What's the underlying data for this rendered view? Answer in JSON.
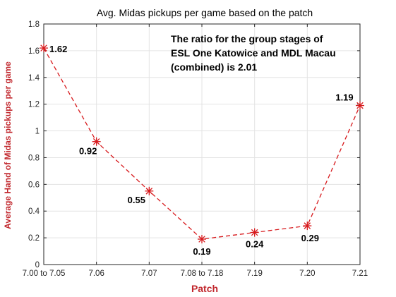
{
  "chart_data": {
    "type": "line",
    "title": "Avg. Midas pickups per game based on the patch",
    "xlabel": "Patch",
    "ylabel": "Average Hand of Midas pickups per game",
    "categories": [
      "7.00 to 7.05",
      "7.06",
      "7.07",
      "7.08 to 7.18",
      "7.19",
      "7.20",
      "7.21"
    ],
    "values": [
      1.62,
      0.92,
      0.55,
      0.19,
      0.24,
      0.29,
      1.19
    ],
    "data_labels": [
      "1.62",
      "0.92",
      "0.55",
      "0.19",
      "0.24",
      "0.29",
      "1.19"
    ],
    "ylim": [
      0,
      1.8
    ],
    "yticks": [
      0,
      0.2,
      0.4,
      0.6,
      0.8,
      1,
      1.2,
      1.4,
      1.6,
      1.8
    ],
    "ytick_labels": [
      "0",
      "0.2",
      "0.4",
      "0.6",
      "0.8",
      "1",
      "1.2",
      "1.4",
      "1.6",
      "1.8"
    ],
    "grid": true,
    "marker": "asterisk",
    "line_style": "dashed",
    "series_color": "#d7191c",
    "label_color": "#c1272d",
    "annotation": [
      "The ratio for the group stages of",
      "ESL One Katowice and MDL Macau",
      "(combined) is 2.01"
    ]
  }
}
